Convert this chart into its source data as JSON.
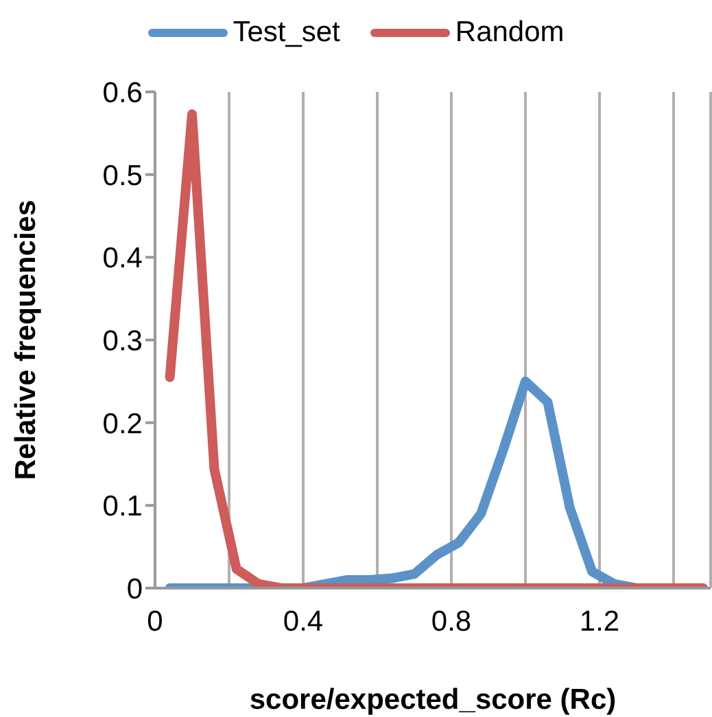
{
  "chart_data": {
    "type": "line",
    "xlabel": "score/expected_score (Rc)",
    "ylabel": "Relative frequencies",
    "x": [
      0.04,
      0.1,
      0.16,
      0.22,
      0.28,
      0.34,
      0.4,
      0.46,
      0.52,
      0.58,
      0.64,
      0.7,
      0.76,
      0.82,
      0.88,
      0.94,
      1.0,
      1.06,
      1.12,
      1.18,
      1.24,
      1.3,
      1.36,
      1.42,
      1.48
    ],
    "series": [
      {
        "name": "Test_set",
        "color": "#5b93c9",
        "values": [
          0,
          0,
          0,
          0,
          0,
          0,
          0,
          0.005,
          0.01,
          0.01,
          0.012,
          0.017,
          0.04,
          0.055,
          0.09,
          0.167,
          0.25,
          0.225,
          0.097,
          0.02,
          0.005,
          0,
          0,
          null,
          null
        ]
      },
      {
        "name": "Random",
        "color": "#cd5c5a",
        "values": [
          0.255,
          0.573,
          0.144,
          0.023,
          0.005,
          0,
          0,
          0,
          0,
          0,
          0,
          0,
          0,
          0,
          0,
          0,
          0,
          0,
          0,
          0,
          0,
          0,
          0,
          0,
          0
        ]
      }
    ],
    "xlim": [
      0,
      1.5
    ],
    "xticks": [
      0,
      {
        "value": 0.2,
        "label": null
      },
      0.4,
      {
        "value": 0.6,
        "label": null
      },
      0.8,
      {
        "value": 1.0,
        "label": null
      },
      1.2,
      {
        "value": 1.4,
        "label": null
      }
    ],
    "ylim": [
      0,
      0.6
    ],
    "yticks": [
      0,
      0.1,
      0.2,
      0.3,
      0.4,
      0.5,
      0.6
    ],
    "grid": "x",
    "legend": "top",
    "marker": "none",
    "line_style": "solid"
  }
}
